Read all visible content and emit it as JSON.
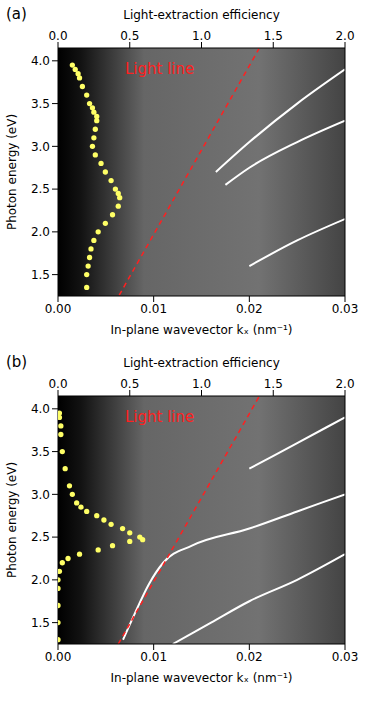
{
  "chart_data": [
    {
      "type": "scatter",
      "panel": "(a)",
      "x2label": "Light-extraction efficiency",
      "xlabel": "In-plane wavevector kₓ (nm⁻¹)",
      "ylabel": "Photon energy (eV)",
      "xlim": [
        0,
        0.03
      ],
      "xticks": [
        {
          "value": 0,
          "label": "0.00"
        },
        {
          "value": 0.01,
          "label": "0.01"
        },
        {
          "value": 0.02,
          "label": "0.02"
        },
        {
          "value": 0.03,
          "label": "0.03"
        }
      ],
      "x2lim": [
        0,
        2
      ],
      "x2ticks": [
        {
          "value": 0,
          "label": "0.0"
        },
        0.5,
        {
          "value": 1,
          "label": "1.0"
        },
        1.5,
        {
          "value": 2,
          "label": "2.0"
        }
      ],
      "ylim": [
        1.25,
        4.15
      ],
      "yticks": [
        1.5,
        {
          "value": 2,
          "label": "2.0"
        },
        2.5,
        {
          "value": 3,
          "label": "3.0"
        },
        3.5,
        {
          "value": 4,
          "label": "4.0"
        }
      ],
      "grid": false,
      "series": [
        {
          "type": "line",
          "color": "#ffffff",
          "line_style": "solid",
          "x": [
            0.0165,
            0.02,
            0.025,
            0.03
          ],
          "values": [
            2.7,
            3.05,
            3.5,
            3.9
          ]
        },
        {
          "type": "line",
          "color": "#ffffff",
          "line_style": "solid",
          "x": [
            0.0175,
            0.02,
            0.025,
            0.03
          ],
          "values": [
            2.55,
            2.75,
            3.05,
            3.3
          ]
        },
        {
          "type": "line",
          "color": "#ffffff",
          "line_style": "solid",
          "x": [
            0.02,
            0.025,
            0.03
          ],
          "values": [
            1.6,
            1.9,
            2.15
          ]
        },
        {
          "type": "line",
          "name": "Light line",
          "color": "#ff2020",
          "line_style": "dashed",
          "x": [
            0.0064,
            0.021
          ],
          "values": [
            1.26,
            4.14
          ]
        },
        {
          "type": "scatter",
          "axis": "x2",
          "color": "#ffff66",
          "marker": "circle",
          "x": [
            0.1,
            0.12,
            0.14,
            0.15,
            0.17,
            0.2,
            0.22,
            0.24,
            0.25,
            0.27,
            0.27,
            0.26,
            0.25,
            0.24,
            0.26,
            0.3,
            0.33,
            0.37,
            0.4,
            0.42,
            0.43,
            0.42,
            0.38,
            0.33,
            0.28,
            0.25,
            0.23,
            0.22,
            0.21,
            0.2,
            0.2
          ],
          "values": [
            3.95,
            3.9,
            3.85,
            3.8,
            3.7,
            3.6,
            3.5,
            3.45,
            3.4,
            3.35,
            3.3,
            3.2,
            3.1,
            3.0,
            2.9,
            2.8,
            2.7,
            2.6,
            2.5,
            2.45,
            2.4,
            2.3,
            2.2,
            2.1,
            2.0,
            1.9,
            1.8,
            1.7,
            1.6,
            1.5,
            1.35
          ]
        }
      ]
    },
    {
      "type": "scatter",
      "panel": "(b)",
      "x2label": "Light-extraction efficiency",
      "xlabel": "In-plane wavevector kₓ (nm⁻¹)",
      "ylabel": "Photon energy (eV)",
      "xlim": [
        0,
        0.03
      ],
      "xticks": [
        {
          "value": 0,
          "label": "0.00"
        },
        {
          "value": 0.01,
          "label": "0.01"
        },
        {
          "value": 0.02,
          "label": "0.02"
        },
        {
          "value": 0.03,
          "label": "0.03"
        }
      ],
      "x2lim": [
        0,
        2
      ],
      "x2ticks": [
        {
          "value": 0,
          "label": "0.0"
        },
        0.5,
        {
          "value": 1,
          "label": "1.0"
        },
        1.5,
        {
          "value": 2,
          "label": "2.0"
        }
      ],
      "ylim": [
        1.25,
        4.15
      ],
      "yticks": [
        1.5,
        {
          "value": 2,
          "label": "2.0"
        },
        2.5,
        {
          "value": 3,
          "label": "3.0"
        },
        3.5,
        {
          "value": 4,
          "label": "4.0"
        }
      ],
      "grid": false,
      "series": [
        {
          "type": "line",
          "color": "#ffffff",
          "line_style": "solid",
          "x": [
            0.0068,
            0.008,
            0.0095,
            0.011,
            0.014,
            0.02,
            0.025,
            0.03
          ],
          "values": [
            1.3,
            1.6,
            1.95,
            2.2,
            2.4,
            2.6,
            2.8,
            3.0
          ]
        },
        {
          "type": "line",
          "color": "#ffffff",
          "line_style": "solid",
          "x": [
            0.012,
            0.016,
            0.02,
            0.025,
            0.03
          ],
          "values": [
            1.25,
            1.5,
            1.75,
            2.0,
            2.3
          ]
        },
        {
          "type": "line",
          "color": "#ffffff",
          "line_style": "solid",
          "x": [
            0.02,
            0.025,
            0.03
          ],
          "values": [
            3.3,
            3.6,
            3.9
          ]
        },
        {
          "type": "line",
          "name": "Light line",
          "color": "#ff2020",
          "line_style": "dashed",
          "x": [
            0.0063,
            0.021
          ],
          "values": [
            1.25,
            4.14
          ]
        },
        {
          "type": "scatter",
          "axis": "x2",
          "color": "#ffff66",
          "marker": "circle",
          "x": [
            0.01,
            0.01,
            0.02,
            0.02,
            0.03,
            0.05,
            0.08,
            0.1,
            0.13,
            0.16,
            0.2,
            0.27,
            0.32,
            0.37,
            0.45,
            0.5,
            0.57,
            0.59,
            0.5,
            0.38,
            0.28,
            0.15,
            0.07,
            0.03,
            0.01,
            0.0,
            0.0,
            0.0,
            0.0,
            0.0
          ],
          "values": [
            3.95,
            3.9,
            3.8,
            3.7,
            3.5,
            3.3,
            3.1,
            3.0,
            2.9,
            2.85,
            2.8,
            2.75,
            2.7,
            2.65,
            2.6,
            2.55,
            2.5,
            2.47,
            2.45,
            2.4,
            2.35,
            2.3,
            2.25,
            2.2,
            2.1,
            2.0,
            1.9,
            1.7,
            1.5,
            1.3
          ]
        }
      ]
    }
  ]
}
